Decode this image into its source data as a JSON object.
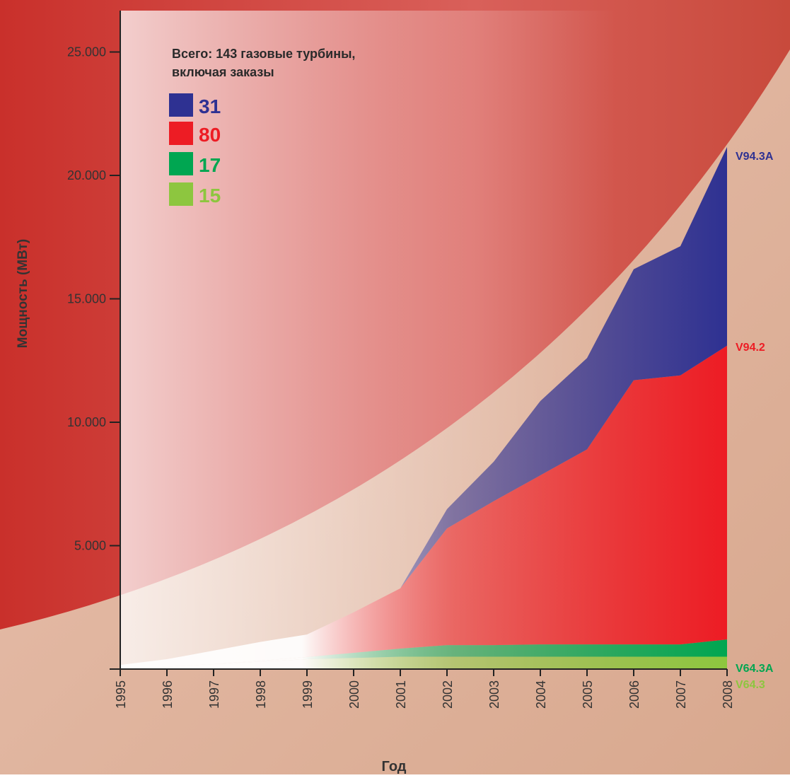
{
  "chart_data": {
    "type": "stacked-area",
    "title_lines": [
      "Всего: 143 газовые турбины,",
      "включая заказы"
    ],
    "y_label": "Мощность (МВт)",
    "x_label": "Год",
    "x": [
      1995,
      1996,
      1997,
      1998,
      1999,
      2000,
      2001,
      2002,
      2003,
      2004,
      2005,
      2006,
      2007,
      2008
    ],
    "xlim": [
      1995,
      2008
    ],
    "xticks": [
      1995,
      1996,
      1997,
      1998,
      1999,
      2000,
      2001,
      2002,
      2003,
      2004,
      2005,
      2006,
      2007,
      2008
    ],
    "ylim": [
      0,
      26000
    ],
    "yticks": [
      {
        "value": 5000,
        "label": "5.000"
      },
      {
        "value": 10000,
        "label": "10.000"
      },
      {
        "value": 15000,
        "label": "15.000"
      },
      {
        "value": 20000,
        "label": "20.000"
      },
      {
        "value": 25000,
        "label": "25.000"
      }
    ],
    "series": [
      {
        "name": "V64.3",
        "color": "#8dc63f",
        "count": 15,
        "values": [
          0,
          100,
          200,
          300,
          400,
          450,
          500,
          500,
          500,
          500,
          500,
          500,
          500,
          500
        ]
      },
      {
        "name": "V64.3A",
        "color": "#00a651",
        "count": 17,
        "values": [
          0,
          0,
          0,
          40,
          90,
          210,
          330,
          470,
          470,
          500,
          500,
          500,
          500,
          700
        ]
      },
      {
        "name": "V94.2",
        "color": "#ed1c24",
        "count": 80,
        "values": [
          170,
          300,
          550,
          760,
          910,
          1640,
          2440,
          4730,
          5830,
          6850,
          7900,
          10700,
          10900,
          11900
        ]
      },
      {
        "name": "V94.3A",
        "color": "#2e3192",
        "count": 31,
        "values": [
          0,
          0,
          0,
          0,
          0,
          0,
          0,
          780,
          1600,
          3010,
          3700,
          4500,
          5230,
          8050
        ]
      }
    ]
  }
}
